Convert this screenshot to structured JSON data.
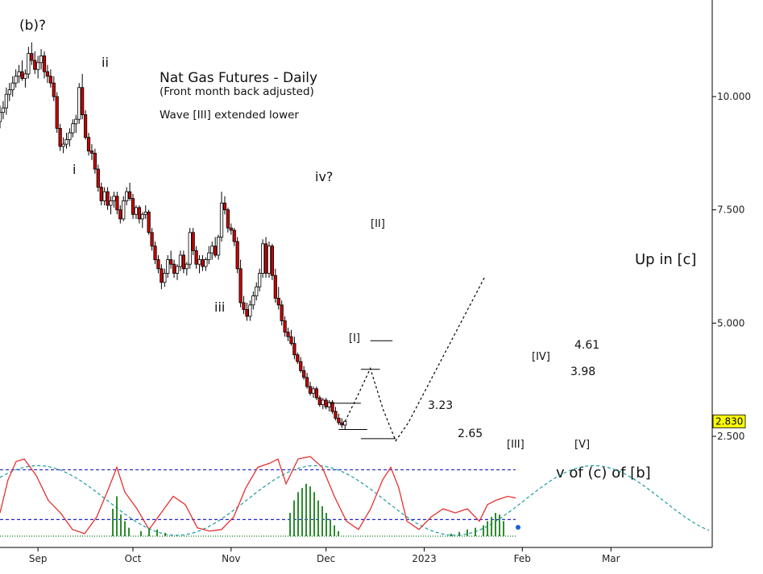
{
  "chart_data": {
    "type": "candlestick",
    "title": "Nat Gas Futures - Daily",
    "subtitle": "(Front month back adjusted)",
    "note": "Wave [III] extended lower",
    "yaxis": {
      "ticks": [
        10.0,
        7.5,
        5.0,
        2.5
      ],
      "tick_labels": [
        "10.000",
        "7.500",
        "5.000",
        "2.500"
      ],
      "ylim": [
        1.2,
        11.5
      ],
      "position": "right"
    },
    "xaxis": {
      "tick_labels": [
        "Sep",
        "Oct",
        "Nov",
        "Dec",
        "2023",
        "Feb",
        "Mar"
      ],
      "tick_days": [
        0,
        30,
        61,
        91,
        122,
        153,
        181
      ],
      "xlim": [
        -12,
        213
      ]
    },
    "last_price": "2.830",
    "colors": {
      "up": "#ffffff",
      "down": "#cc0000",
      "wick": "#000000",
      "oscillator": "#e53030",
      "cycle": "#1a9aa0",
      "band": "#2323c8",
      "histogram": "#2e8b2e",
      "price_tag": "#ffff00"
    },
    "wave_labels": [
      {
        "text": "(b)?",
        "day": -8,
        "price": 10.8
      },
      {
        "text": "i",
        "day": 7,
        "price": 8.45
      },
      {
        "text": "ii",
        "day": 28,
        "price": 10.9
      },
      {
        "text": "iii",
        "day": 63,
        "price": 5.15
      },
      {
        "text": "iv?",
        "day": 94,
        "price": 8.2
      },
      {
        "text": "[II]",
        "day": 117,
        "price": 6.95
      },
      {
        "text": "[I]",
        "day": 106,
        "price": 4.2
      },
      {
        "text": "3.23",
        "day": 143,
        "price": 3.17
      },
      {
        "text": "2.65",
        "day": 150,
        "price": 2.55
      },
      {
        "text": "[III]",
        "day": 162,
        "price": 2.45
      },
      {
        "text": "[IV]",
        "day": 161,
        "price": 4.2
      },
      {
        "text": "4.61",
        "day": 176,
        "price": 4.6
      },
      {
        "text": "3.98",
        "day": 175,
        "price": 3.95
      },
      {
        "text": "[V]",
        "day": 175,
        "price": 2.45
      },
      {
        "text": "Up in [c]",
        "day": 183,
        "price": 6.9
      },
      {
        "text": "v of (c) of [b]",
        "day": 164,
        "price": 1.85
      }
    ],
    "candles": [
      [
        -12,
        9.45,
        9.8,
        9.3,
        9.65
      ],
      [
        -11,
        9.65,
        9.9,
        9.5,
        9.75
      ],
      [
        -10,
        9.75,
        10.2,
        9.6,
        10.05
      ],
      [
        -9,
        10.05,
        10.3,
        9.9,
        10.15
      ],
      [
        -8,
        10.15,
        10.45,
        10.0,
        10.3
      ],
      [
        -7,
        10.3,
        10.6,
        10.2,
        10.45
      ],
      [
        -6,
        10.45,
        10.7,
        10.3,
        10.55
      ],
      [
        -5,
        10.55,
        10.8,
        10.35,
        10.4
      ],
      [
        -4,
        10.4,
        10.6,
        10.2,
        10.5
      ],
      [
        -3,
        10.5,
        11.1,
        10.4,
        10.95
      ],
      [
        -2,
        10.95,
        11.2,
        10.7,
        10.8
      ],
      [
        -1,
        10.8,
        11.0,
        10.5,
        10.6
      ],
      [
        0,
        10.6,
        10.9,
        10.4,
        10.75
      ],
      [
        1,
        10.75,
        11.05,
        10.6,
        10.9
      ],
      [
        2,
        10.9,
        11.0,
        10.4,
        10.55
      ],
      [
        3,
        10.55,
        10.7,
        10.3,
        10.45
      ],
      [
        4,
        10.45,
        10.6,
        10.2,
        10.3
      ],
      [
        5,
        10.3,
        10.45,
        9.9,
        10.0
      ],
      [
        6,
        10.0,
        10.1,
        9.2,
        9.3
      ],
      [
        7,
        9.3,
        9.4,
        8.8,
        8.9
      ],
      [
        8,
        8.9,
        9.1,
        8.75,
        8.95
      ],
      [
        9,
        8.95,
        9.2,
        8.85,
        9.05
      ],
      [
        10,
        9.05,
        9.3,
        8.9,
        9.2
      ],
      [
        11,
        9.2,
        9.5,
        9.1,
        9.4
      ],
      [
        12,
        9.4,
        9.6,
        9.2,
        9.5
      ],
      [
        13,
        9.5,
        10.3,
        9.4,
        10.2
      ],
      [
        14,
        10.2,
        10.5,
        9.5,
        9.6
      ],
      [
        15,
        9.6,
        9.7,
        9.05,
        9.1
      ],
      [
        16,
        9.1,
        9.2,
        8.7,
        8.8
      ],
      [
        17,
        8.8,
        8.95,
        8.6,
        8.75
      ],
      [
        18,
        8.75,
        8.85,
        8.3,
        8.4
      ],
      [
        19,
        8.4,
        8.5,
        7.9,
        8.0
      ],
      [
        20,
        8.0,
        8.1,
        7.6,
        7.7
      ],
      [
        21,
        7.7,
        8.0,
        7.6,
        7.9
      ],
      [
        22,
        7.9,
        8.0,
        7.5,
        7.6
      ],
      [
        23,
        7.6,
        7.8,
        7.4,
        7.7
      ],
      [
        24,
        7.7,
        7.9,
        7.55,
        7.8
      ],
      [
        25,
        7.8,
        7.9,
        7.4,
        7.5
      ],
      [
        26,
        7.5,
        7.6,
        7.2,
        7.3
      ],
      [
        27,
        7.3,
        7.8,
        7.25,
        7.7
      ],
      [
        28,
        7.7,
        8.0,
        7.6,
        7.9
      ],
      [
        29,
        7.9,
        8.1,
        7.7,
        7.75
      ],
      [
        30,
        7.75,
        7.85,
        7.3,
        7.4
      ],
      [
        31,
        7.4,
        7.6,
        7.3,
        7.55
      ],
      [
        32,
        7.55,
        7.6,
        7.2,
        7.3
      ],
      [
        33,
        7.3,
        7.45,
        7.1,
        7.4
      ],
      [
        34,
        7.4,
        7.6,
        7.3,
        7.45
      ],
      [
        35,
        7.45,
        7.5,
        6.95,
        7.0
      ],
      [
        36,
        7.0,
        7.1,
        6.6,
        6.7
      ],
      [
        37,
        6.7,
        6.8,
        6.3,
        6.4
      ],
      [
        38,
        6.4,
        6.5,
        6.1,
        6.2
      ],
      [
        39,
        6.2,
        6.3,
        5.75,
        5.9
      ],
      [
        40,
        5.9,
        6.2,
        5.8,
        6.1
      ],
      [
        41,
        6.1,
        6.5,
        6.0,
        6.4
      ],
      [
        42,
        6.4,
        6.6,
        6.2,
        6.3
      ],
      [
        43,
        6.3,
        6.4,
        6.0,
        6.1
      ],
      [
        44,
        6.1,
        6.3,
        5.95,
        6.25
      ],
      [
        45,
        6.25,
        6.6,
        6.15,
        6.5
      ],
      [
        46,
        6.5,
        6.6,
        6.1,
        6.2
      ],
      [
        47,
        6.2,
        6.35,
        6.05,
        6.3
      ],
      [
        48,
        6.3,
        7.1,
        6.2,
        7.0
      ],
      [
        49,
        7.0,
        7.1,
        6.5,
        6.6
      ],
      [
        50,
        6.6,
        6.7,
        6.2,
        6.3
      ],
      [
        51,
        6.3,
        6.5,
        6.1,
        6.4
      ],
      [
        52,
        6.4,
        6.5,
        6.15,
        6.25
      ],
      [
        53,
        6.25,
        6.45,
        6.15,
        6.4
      ],
      [
        54,
        6.4,
        6.7,
        6.3,
        6.55
      ],
      [
        55,
        6.55,
        6.8,
        6.4,
        6.7
      ],
      [
        56,
        6.7,
        6.9,
        6.45,
        6.5
      ],
      [
        57,
        6.5,
        6.95,
        6.4,
        6.9
      ],
      [
        58,
        6.9,
        7.9,
        6.8,
        7.65
      ],
      [
        59,
        7.65,
        7.8,
        7.4,
        7.5
      ],
      [
        60,
        7.5,
        7.55,
        7.0,
        7.1
      ],
      [
        61,
        7.1,
        7.2,
        6.95,
        7.05
      ],
      [
        62,
        7.05,
        7.1,
        6.7,
        6.8
      ],
      [
        63,
        6.8,
        6.9,
        6.1,
        6.2
      ],
      [
        64,
        6.2,
        6.4,
        5.35,
        5.45
      ],
      [
        65,
        5.45,
        5.6,
        5.2,
        5.3
      ],
      [
        66,
        5.3,
        5.45,
        5.05,
        5.15
      ],
      [
        67,
        5.15,
        5.5,
        5.05,
        5.4
      ],
      [
        68,
        5.4,
        5.7,
        5.3,
        5.6
      ],
      [
        69,
        5.6,
        5.9,
        5.5,
        5.8
      ],
      [
        70,
        5.8,
        6.2,
        5.7,
        6.1
      ],
      [
        71,
        6.1,
        6.85,
        6.0,
        6.75
      ],
      [
        72,
        6.75,
        6.9,
        6.0,
        6.1
      ],
      [
        73,
        6.1,
        6.8,
        6.0,
        6.7
      ],
      [
        74,
        6.7,
        6.75,
        5.95,
        6.05
      ],
      [
        75,
        6.05,
        6.2,
        5.45,
        5.55
      ],
      [
        76,
        5.55,
        5.8,
        5.3,
        5.4
      ],
      [
        77,
        5.4,
        5.5,
        4.95,
        5.05
      ],
      [
        78,
        5.05,
        5.15,
        4.7,
        4.8
      ],
      [
        79,
        4.8,
        4.9,
        4.6,
        4.7
      ],
      [
        80,
        4.7,
        4.85,
        4.5,
        4.55
      ],
      [
        81,
        4.55,
        4.7,
        4.2,
        4.3
      ],
      [
        82,
        4.3,
        4.35,
        4.1,
        4.15
      ],
      [
        83,
        4.15,
        4.25,
        3.9,
        3.95
      ],
      [
        84,
        3.95,
        4.05,
        3.75,
        3.8
      ],
      [
        85,
        3.8,
        3.9,
        3.55,
        3.6
      ],
      [
        86,
        3.6,
        3.7,
        3.4,
        3.45
      ],
      [
        87,
        3.45,
        3.6,
        3.35,
        3.55
      ],
      [
        88,
        3.55,
        3.6,
        3.3,
        3.35
      ],
      [
        89,
        3.35,
        3.4,
        3.15,
        3.2
      ],
      [
        90,
        3.2,
        3.35,
        3.1,
        3.3
      ],
      [
        91,
        3.3,
        3.35,
        3.1,
        3.15
      ],
      [
        92,
        3.15,
        3.3,
        3.05,
        3.25
      ],
      [
        93,
        3.25,
        3.3,
        3.0,
        3.05
      ],
      [
        94,
        3.05,
        3.15,
        2.85,
        2.9
      ],
      [
        95,
        2.9,
        3.0,
        2.75,
        2.8
      ],
      [
        96,
        2.8,
        2.9,
        2.68,
        2.75
      ],
      [
        97,
        2.75,
        2.85,
        2.65,
        2.83
      ]
    ],
    "projection": {
      "targets": [
        4.61,
        3.98,
        3.23,
        2.65
      ],
      "path": [
        [
          97,
          2.83
        ],
        [
          101,
          3.4
        ],
        [
          105,
          4.0
        ],
        [
          109,
          3.1
        ],
        [
          113,
          2.4
        ],
        [
          117,
          2.8
        ],
        [
          126,
          4.0
        ],
        [
          135,
          5.2
        ],
        [
          141,
          6.0
        ]
      ]
    }
  },
  "labels": {
    "title": "Nat Gas Futures - Daily",
    "subtitle": "(Front month back adjusted)",
    "note": "Wave [III] extended lower",
    "last_price": "2.830"
  }
}
